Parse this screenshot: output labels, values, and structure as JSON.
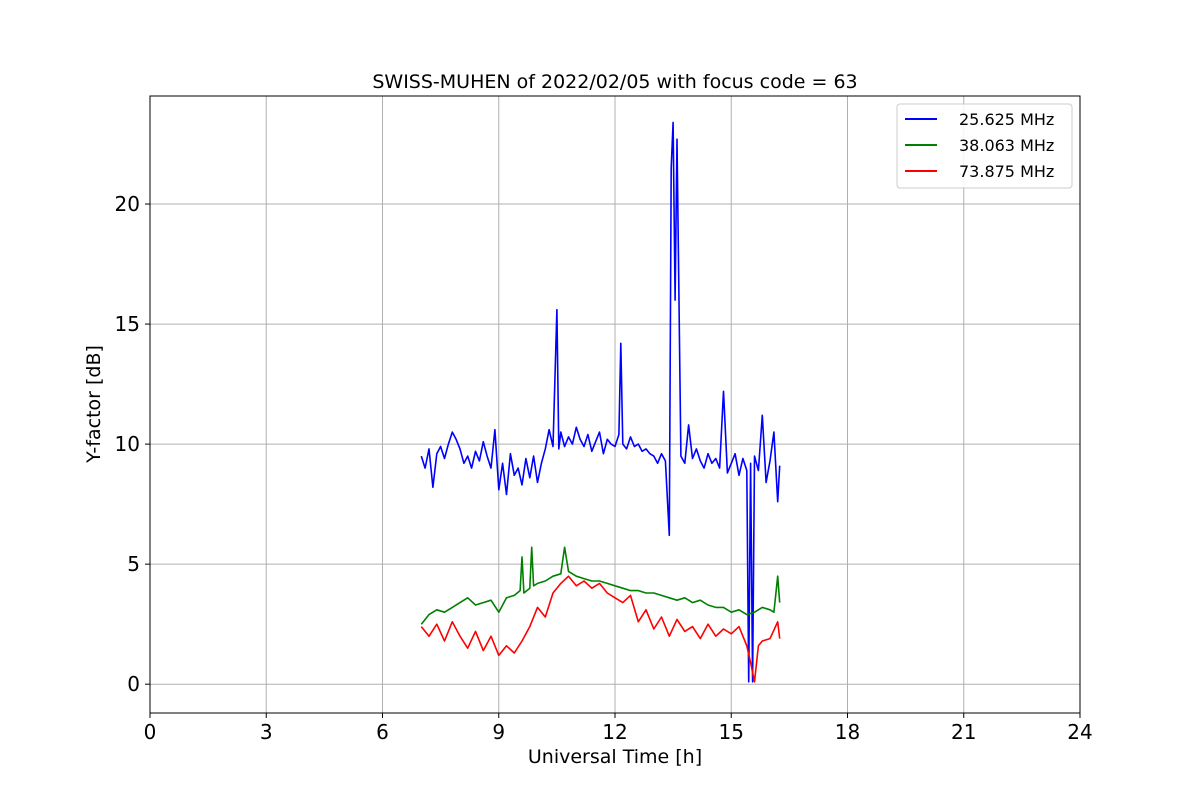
{
  "chart_data": {
    "type": "line",
    "title": "SWISS-MUHEN of 2022/02/05 with focus code = 63",
    "xlabel": "Universal Time [h]",
    "ylabel": "Y-factor [dB]",
    "xlim": [
      0,
      24
    ],
    "ylim": [
      -1.2,
      24.5
    ],
    "xticks": [
      0,
      3,
      6,
      9,
      12,
      15,
      18,
      21,
      24
    ],
    "xtick_labels": [
      "0",
      "3",
      "6",
      "9",
      "12",
      "15",
      "18",
      "21",
      "24"
    ],
    "yticks": [
      0,
      5,
      10,
      15,
      20
    ],
    "ytick_labels": [
      "0",
      "5",
      "10",
      "15",
      "20"
    ],
    "grid": true,
    "legend_position": "top-right",
    "series": [
      {
        "name": "25.625 MHz",
        "color": "#0000ff",
        "x": [
          7.0,
          7.1,
          7.2,
          7.3,
          7.4,
          7.5,
          7.6,
          7.7,
          7.8,
          7.9,
          8.0,
          8.1,
          8.2,
          8.3,
          8.4,
          8.5,
          8.6,
          8.7,
          8.8,
          8.9,
          9.0,
          9.1,
          9.2,
          9.3,
          9.4,
          9.5,
          9.6,
          9.7,
          9.8,
          9.9,
          10.0,
          10.1,
          10.2,
          10.3,
          10.4,
          10.5,
          10.55,
          10.6,
          10.7,
          10.8,
          10.9,
          11.0,
          11.1,
          11.2,
          11.3,
          11.4,
          11.5,
          11.6,
          11.7,
          11.8,
          11.9,
          12.0,
          12.1,
          12.15,
          12.2,
          12.3,
          12.4,
          12.5,
          12.6,
          12.7,
          12.8,
          12.9,
          13.0,
          13.1,
          13.2,
          13.3,
          13.4,
          13.45,
          13.5,
          13.55,
          13.6,
          13.7,
          13.8,
          13.9,
          14.0,
          14.1,
          14.2,
          14.3,
          14.4,
          14.5,
          14.6,
          14.7,
          14.8,
          14.9,
          15.0,
          15.1,
          15.2,
          15.3,
          15.4,
          15.45,
          15.5,
          15.55,
          15.6,
          15.7,
          15.8,
          15.9,
          16.0,
          16.1,
          16.2,
          16.25
        ],
        "values": [
          9.5,
          9.0,
          9.8,
          8.2,
          9.6,
          9.9,
          9.4,
          10.0,
          10.5,
          10.2,
          9.8,
          9.2,
          9.5,
          9.0,
          9.7,
          9.3,
          10.1,
          9.5,
          9.0,
          10.6,
          8.1,
          9.2,
          7.9,
          9.6,
          8.7,
          9.0,
          8.3,
          9.4,
          8.6,
          9.5,
          8.4,
          9.2,
          9.8,
          10.6,
          9.9,
          15.6,
          9.8,
          10.5,
          9.9,
          10.3,
          10.0,
          10.7,
          10.2,
          9.9,
          10.4,
          9.7,
          10.1,
          10.5,
          9.6,
          10.2,
          10.0,
          9.9,
          10.4,
          14.2,
          10.0,
          9.8,
          10.3,
          9.9,
          10.0,
          9.7,
          9.8,
          9.6,
          9.5,
          9.2,
          9.6,
          9.3,
          6.2,
          21.5,
          23.4,
          16.0,
          22.7,
          9.5,
          9.2,
          10.8,
          9.4,
          9.8,
          9.3,
          9.0,
          9.6,
          9.2,
          9.4,
          9.0,
          12.2,
          8.8,
          9.2,
          9.6,
          8.7,
          9.4,
          8.9,
          0.1,
          9.2,
          0.1,
          9.5,
          8.9,
          11.2,
          8.4,
          9.3,
          10.5,
          7.6,
          9.1
        ]
      },
      {
        "name": "38.063 MHz",
        "color": "#008000",
        "x": [
          7.0,
          7.2,
          7.4,
          7.6,
          7.8,
          8.0,
          8.2,
          8.4,
          8.6,
          8.8,
          9.0,
          9.2,
          9.4,
          9.55,
          9.6,
          9.65,
          9.8,
          9.85,
          9.9,
          10.0,
          10.2,
          10.4,
          10.6,
          10.7,
          10.8,
          11.0,
          11.2,
          11.4,
          11.6,
          11.8,
          12.0,
          12.2,
          12.4,
          12.6,
          12.8,
          13.0,
          13.2,
          13.4,
          13.6,
          13.8,
          14.0,
          14.2,
          14.4,
          14.6,
          14.8,
          15.0,
          15.2,
          15.4,
          15.6,
          15.8,
          16.0,
          16.1,
          16.2,
          16.25
        ],
        "values": [
          2.5,
          2.9,
          3.1,
          3.0,
          3.2,
          3.4,
          3.6,
          3.3,
          3.4,
          3.5,
          3.0,
          3.6,
          3.7,
          3.9,
          5.3,
          3.8,
          4.0,
          5.7,
          4.1,
          4.2,
          4.3,
          4.5,
          4.6,
          5.7,
          4.7,
          4.5,
          4.4,
          4.3,
          4.3,
          4.2,
          4.1,
          4.0,
          3.9,
          3.9,
          3.8,
          3.8,
          3.7,
          3.6,
          3.5,
          3.6,
          3.4,
          3.5,
          3.3,
          3.2,
          3.2,
          3.0,
          3.1,
          2.9,
          3.0,
          3.2,
          3.1,
          3.0,
          4.5,
          3.4
        ]
      },
      {
        "name": "73.875 MHz",
        "color": "#ff0000",
        "x": [
          7.0,
          7.2,
          7.4,
          7.6,
          7.8,
          8.0,
          8.2,
          8.4,
          8.6,
          8.8,
          9.0,
          9.2,
          9.4,
          9.6,
          9.8,
          10.0,
          10.2,
          10.4,
          10.6,
          10.8,
          11.0,
          11.2,
          11.4,
          11.6,
          11.8,
          12.0,
          12.2,
          12.4,
          12.6,
          12.8,
          13.0,
          13.2,
          13.4,
          13.6,
          13.8,
          14.0,
          14.2,
          14.4,
          14.6,
          14.8,
          15.0,
          15.2,
          15.4,
          15.5,
          15.6,
          15.7,
          15.8,
          16.0,
          16.2,
          16.25
        ],
        "values": [
          2.4,
          2.0,
          2.5,
          1.8,
          2.6,
          2.0,
          1.5,
          2.2,
          1.4,
          2.0,
          1.2,
          1.6,
          1.3,
          1.8,
          2.4,
          3.2,
          2.8,
          3.8,
          4.2,
          4.5,
          4.1,
          4.3,
          4.0,
          4.2,
          3.8,
          3.6,
          3.4,
          3.7,
          2.6,
          3.1,
          2.3,
          2.8,
          2.0,
          2.7,
          2.2,
          2.4,
          1.9,
          2.5,
          2.0,
          2.3,
          2.1,
          2.4,
          1.6,
          0.9,
          0.1,
          1.6,
          1.8,
          1.9,
          2.6,
          1.9
        ]
      }
    ]
  }
}
